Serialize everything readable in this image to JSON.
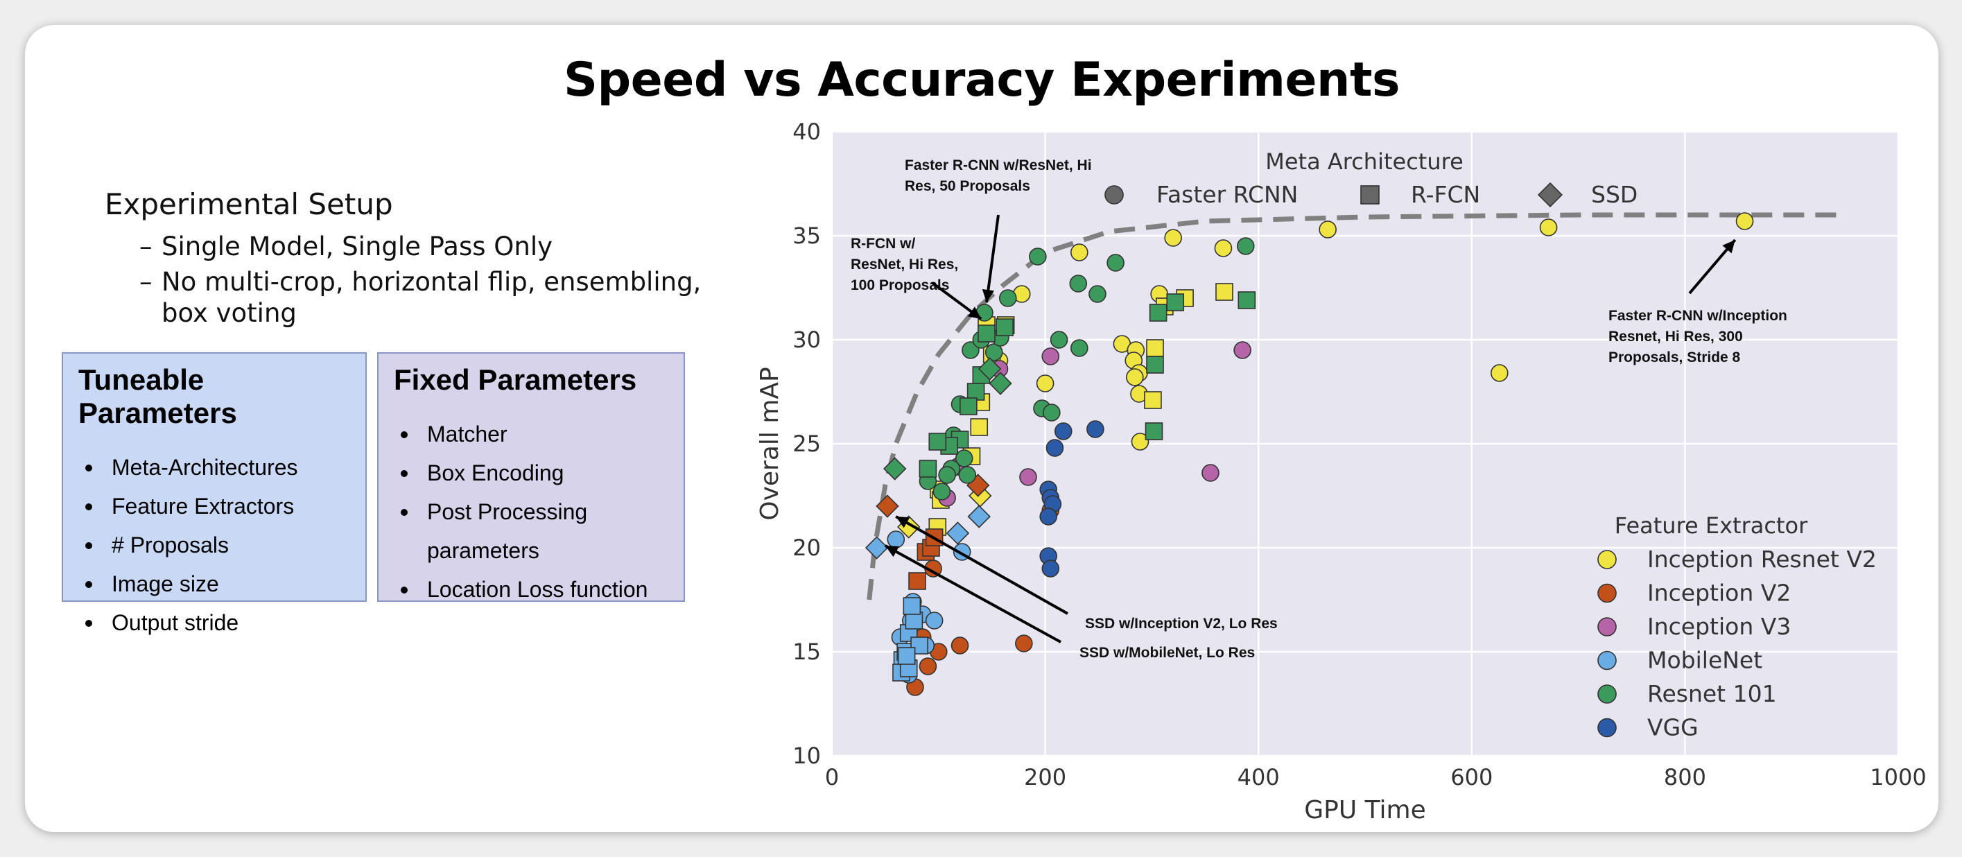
{
  "slide": {
    "title": "Speed vs Accuracy Experiments",
    "setup": {
      "heading": "Experimental Setup",
      "items": [
        "Single Model, Single Pass Only",
        "No multi-crop, horizontal flip, ensembling,",
        "box voting"
      ]
    },
    "tuneable": {
      "title": "Tuneable Parameters",
      "items": [
        "Meta-Architectures",
        "Feature Extractors",
        "# Proposals",
        "Image size",
        "Output stride"
      ]
    },
    "fixed": {
      "title": "Fixed Parameters",
      "items": [
        "Matcher",
        "Box Encoding",
        "Post Processing",
        "parameters",
        "Location Loss function"
      ]
    }
  },
  "colors": {
    "plot_bg": "#e6e5f0",
    "grid": "#ffffff",
    "Inception Resnet V2": "#f0e442",
    "Inception V2": "#c2501a",
    "Inception V3": "#b565a7",
    "MobileNet": "#6aade4",
    "Resnet 101": "#3c9a5c",
    "VGG": "#2b5aa6",
    "frontier": "#808080"
  },
  "chart_data": {
    "type": "scatter",
    "title": "",
    "xlabel": "GPU Time",
    "ylabel": "Overall mAP",
    "xlim": [
      0,
      1000
    ],
    "ylim": [
      10,
      40
    ],
    "xticks": [
      "0",
      "200",
      "400",
      "600",
      "800",
      "1000"
    ],
    "yticks": [
      "10",
      "15",
      "20",
      "25",
      "30",
      "35",
      "40"
    ],
    "grid": true,
    "legend_meta": {
      "title": "Meta Architecture",
      "entries": [
        {
          "label": "Faster RCNN",
          "marker": "circle"
        },
        {
          "label": "R-FCN",
          "marker": "square"
        },
        {
          "label": "SSD",
          "marker": "diamond"
        }
      ],
      "position": "top-center"
    },
    "legend_feature": {
      "title": "Feature Extractor",
      "entries": [
        "Inception Resnet V2",
        "Inception V2",
        "Inception V3",
        "MobileNet",
        "Resnet 101",
        "VGG"
      ],
      "position": "bottom-right"
    },
    "frontier": [
      [
        35,
        17.5
      ],
      [
        40,
        20
      ],
      [
        50,
        23
      ],
      [
        60,
        25
      ],
      [
        80,
        27.5
      ],
      [
        100,
        29.3
      ],
      [
        130,
        31.2
      ],
      [
        160,
        32.6
      ],
      [
        200,
        34.2
      ],
      [
        260,
        35.2
      ],
      [
        350,
        35.7
      ],
      [
        500,
        35.9
      ],
      [
        700,
        36
      ],
      [
        950,
        36
      ]
    ],
    "series": [
      {
        "name": "Inception Resnet V2",
        "marker": "circle",
        "points": [
          [
            178,
            32.2
          ],
          [
            157,
            29
          ],
          [
            200,
            27.9
          ],
          [
            232,
            34.2
          ],
          [
            320,
            34.9
          ],
          [
            307,
            32.2
          ],
          [
            367,
            34.4
          ],
          [
            465,
            35.3
          ],
          [
            672,
            35.4
          ],
          [
            856,
            35.7
          ],
          [
            626,
            28.4
          ],
          [
            272,
            29.8
          ],
          [
            285,
            29.5
          ],
          [
            283,
            29
          ],
          [
            288,
            28.4
          ],
          [
            284,
            28.2
          ],
          [
            288,
            27.4
          ],
          [
            289,
            25.1
          ]
        ]
      },
      {
        "name": "Inception Resnet V2",
        "marker": "square",
        "points": [
          [
            145,
            30.7
          ],
          [
            163,
            30.7
          ],
          [
            150,
            29.3
          ],
          [
            100,
            22.8
          ],
          [
            102,
            22.3
          ],
          [
            99,
            21
          ],
          [
            140,
            27
          ],
          [
            138,
            25.8
          ],
          [
            131,
            24.4
          ],
          [
            312,
            31.6
          ],
          [
            331,
            32
          ],
          [
            368,
            32.3
          ],
          [
            303,
            29.6
          ],
          [
            301,
            27.1
          ]
        ]
      },
      {
        "name": "Inception Resnet V2",
        "marker": "diamond",
        "points": [
          [
            72,
            21
          ],
          [
            139,
            22.5
          ]
        ]
      },
      {
        "name": "Inception V2",
        "marker": "circle",
        "points": [
          [
            78,
            13.3
          ],
          [
            90,
            14.3
          ],
          [
            100,
            15
          ],
          [
            120,
            15.3
          ],
          [
            180,
            15.4
          ],
          [
            205,
            21.8
          ],
          [
            85,
            15.7
          ],
          [
            95,
            19
          ]
        ]
      },
      {
        "name": "Inception V2",
        "marker": "square",
        "points": [
          [
            80,
            18.4
          ],
          [
            88,
            19.8
          ],
          [
            93,
            20
          ],
          [
            96,
            20.5
          ]
        ]
      },
      {
        "name": "Inception V2",
        "marker": "diamond",
        "points": [
          [
            52,
            22
          ],
          [
            137,
            23
          ]
        ]
      },
      {
        "name": "Inception V3",
        "marker": "circle",
        "points": [
          [
            205,
            29.2
          ],
          [
            385,
            29.5
          ],
          [
            355,
            23.6
          ],
          [
            184,
            23.4
          ],
          [
            118,
            23.9
          ],
          [
            157,
            28.6
          ],
          [
            108,
            22.4
          ]
        ]
      },
      {
        "name": "MobileNet",
        "marker": "circle",
        "points": [
          [
            122,
            19.8
          ],
          [
            60,
            20.4
          ],
          [
            76,
            17.4
          ],
          [
            85,
            16.8
          ],
          [
            96,
            16.5
          ],
          [
            74,
            16.5
          ],
          [
            68,
            14.5
          ],
          [
            72,
            13.9
          ],
          [
            64,
            15.7
          ],
          [
            88,
            15.3
          ]
        ]
      },
      {
        "name": "MobileNet",
        "marker": "square",
        "points": [
          [
            66,
            14.6
          ],
          [
            65,
            14
          ],
          [
            72,
            14.2
          ],
          [
            69,
            15
          ],
          [
            72,
            15.9
          ],
          [
            77,
            16.5
          ],
          [
            75,
            17.2
          ],
          [
            82,
            15.3
          ],
          [
            70,
            14.8
          ]
        ]
      },
      {
        "name": "MobileNet",
        "marker": "diamond",
        "points": [
          [
            42,
            20
          ],
          [
            118,
            20.7
          ],
          [
            138,
            21.5
          ]
        ]
      },
      {
        "name": "Resnet 101",
        "marker": "circle",
        "points": [
          [
            143,
            31.3
          ],
          [
            165,
            32
          ],
          [
            193,
            34
          ],
          [
            266,
            33.7
          ],
          [
            231,
            32.7
          ],
          [
            249,
            32.2
          ],
          [
            388,
            34.5
          ],
          [
            213,
            30
          ],
          [
            232,
            29.6
          ],
          [
            197,
            26.7
          ],
          [
            206,
            26.5
          ],
          [
            130,
            29.5
          ],
          [
            140,
            30
          ],
          [
            152,
            29.4
          ],
          [
            158,
            30.1
          ],
          [
            120,
            26.9
          ],
          [
            114,
            25.4
          ],
          [
            124,
            24.3
          ],
          [
            112,
            23.8
          ],
          [
            108,
            23.5
          ],
          [
            103,
            22.7
          ],
          [
            127,
            23.5
          ],
          [
            90,
            23.2
          ]
        ]
      },
      {
        "name": "Resnet 101",
        "marker": "square",
        "points": [
          [
            145,
            30.3
          ],
          [
            140,
            28.3
          ],
          [
            135,
            27.5
          ],
          [
            128,
            26.8
          ],
          [
            120,
            25.2
          ],
          [
            110,
            24.9
          ],
          [
            99,
            25.1
          ],
          [
            90,
            23.8
          ],
          [
            162,
            30.6
          ],
          [
            306,
            31.3
          ],
          [
            322,
            31.8
          ],
          [
            389,
            31.9
          ],
          [
            303,
            28.8
          ],
          [
            302,
            25.6
          ]
        ]
      },
      {
        "name": "Resnet 101",
        "marker": "diamond",
        "points": [
          [
            59,
            23.8
          ],
          [
            158,
            27.9
          ],
          [
            148,
            28.6
          ]
        ]
      },
      {
        "name": "VGG",
        "marker": "circle",
        "points": [
          [
            217,
            25.6
          ],
          [
            247,
            25.7
          ],
          [
            209,
            24.8
          ],
          [
            203,
            22.8
          ],
          [
            205,
            22.4
          ],
          [
            207,
            22.1
          ],
          [
            203,
            21.5
          ],
          [
            203,
            19.6
          ],
          [
            205,
            19
          ]
        ]
      }
    ],
    "annotations": [
      {
        "lines": [
          "Faster R-CNN w/ResNet, Hi",
          "Res, 50 Proposals"
        ],
        "target": [
          145,
          31.8
        ]
      },
      {
        "lines": [
          "R-FCN w/",
          "ResNet, Hi Res,",
          "100 Proposals"
        ],
        "target": [
          140,
          31
        ]
      },
      {
        "lines": [
          "Faster R-CNN w/Inception",
          "Resnet, Hi Res, 300",
          "Proposals, Stride 8"
        ],
        "target": [
          847,
          34.8
        ]
      },
      {
        "lines": [
          "SSD w/Inception V2, Lo Res"
        ],
        "target": [
          60,
          21.5
        ]
      },
      {
        "lines": [
          "SSD w/MobileNet, Lo Res"
        ],
        "target": [
          50,
          20.1
        ]
      }
    ]
  }
}
